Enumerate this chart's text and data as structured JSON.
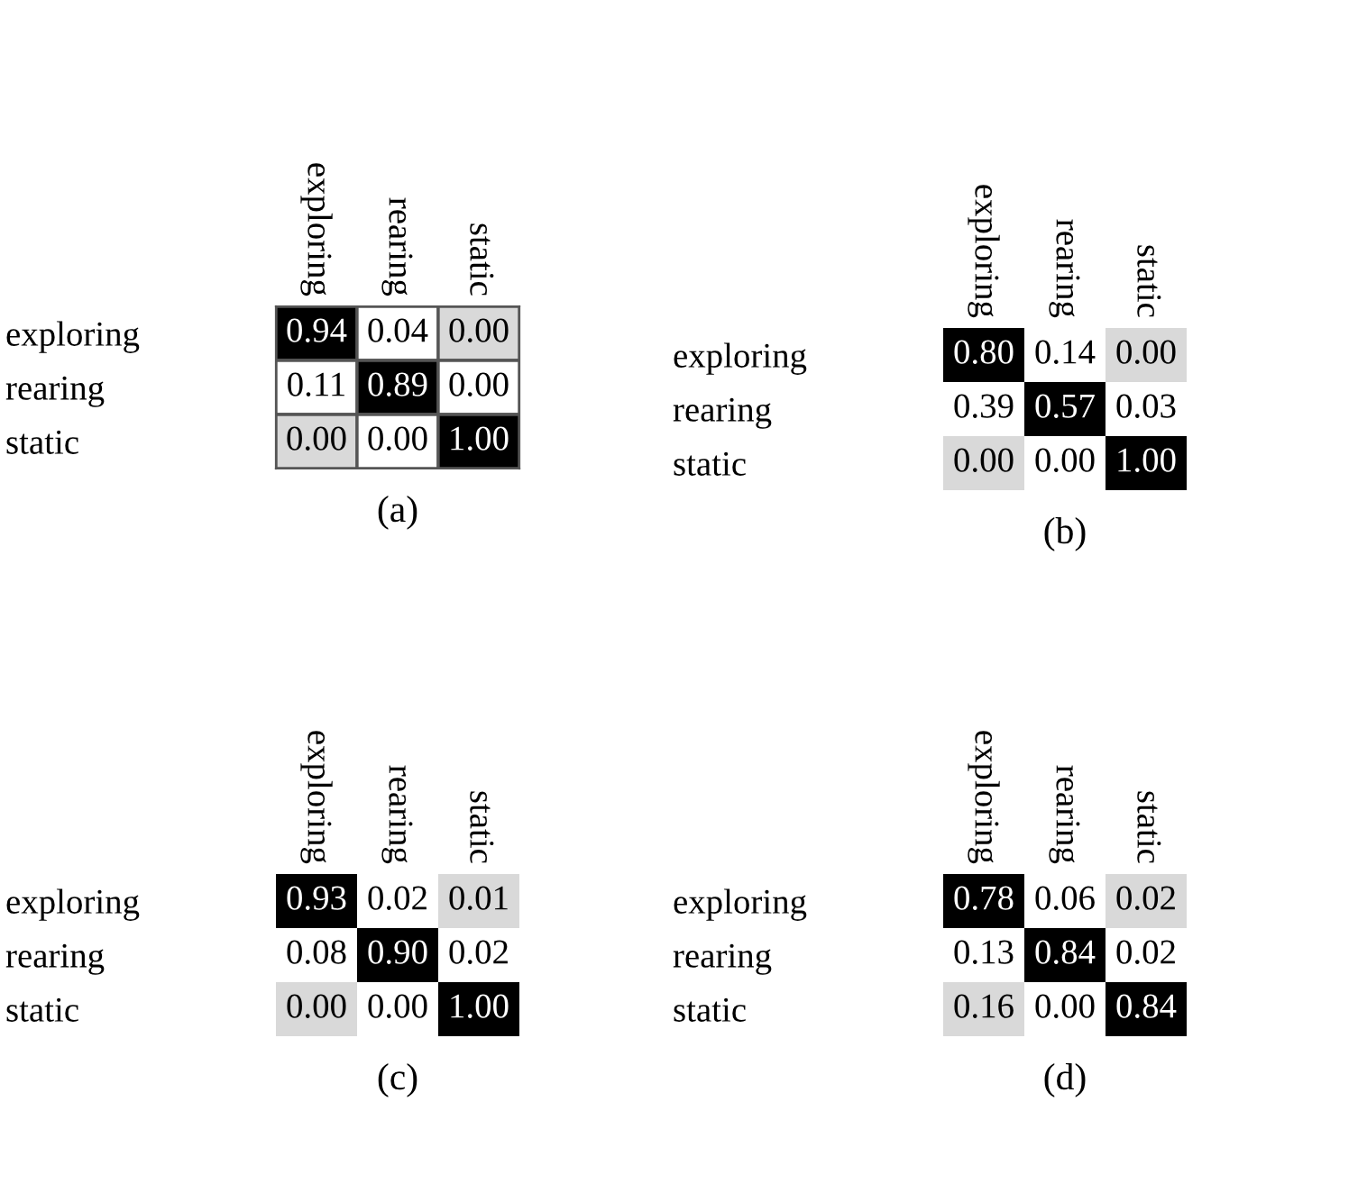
{
  "chart_data": [
    {
      "type": "heatmap",
      "title": "(a)",
      "categories": [
        "exploring",
        "rearing",
        "static"
      ],
      "y_categories": [
        "exploring",
        "rearing",
        "static"
      ],
      "line_style": "solid",
      "cells": [
        [
          0.94,
          0.04,
          0.0
        ],
        [
          0.11,
          0.89,
          0.0
        ],
        [
          0.0,
          0.0,
          1.0
        ]
      ],
      "cell_labels": [
        [
          "0.94",
          "0.04",
          "0.00"
        ],
        [
          "0.11",
          "0.89",
          "0.00"
        ],
        [
          "0.00",
          "0.00",
          "1.00"
        ]
      ],
      "colors": [
        [
          "#000000",
          "#ffffff",
          "#d9d9d9"
        ],
        [
          "#ffffff",
          "#000000",
          "#ffffff"
        ],
        [
          "#d9d9d9",
          "#ffffff",
          "#000000"
        ]
      ]
    },
    {
      "type": "heatmap",
      "title": "(b)",
      "categories": [
        "exploring",
        "rearing",
        "static"
      ],
      "y_categories": [
        "exploring",
        "rearing",
        "static"
      ],
      "cells": [
        [
          0.8,
          0.14,
          0.0
        ],
        [
          0.39,
          0.57,
          0.03
        ],
        [
          0.0,
          0.0,
          1.0
        ]
      ],
      "cell_labels": [
        [
          "0.80",
          "0.14",
          "0.00"
        ],
        [
          "0.39",
          "0.57",
          "0.03"
        ],
        [
          "0.00",
          "0.00",
          "1.00"
        ]
      ],
      "colors": [
        [
          "#000000",
          "#ffffff",
          "#d9d9d9"
        ],
        [
          "#ffffff",
          "#000000",
          "#ffffff"
        ],
        [
          "#d9d9d9",
          "#ffffff",
          "#000000"
        ]
      ]
    },
    {
      "type": "heatmap",
      "title": "(c)",
      "categories": [
        "exploring",
        "rearing",
        "static"
      ],
      "y_categories": [
        "exploring",
        "rearing",
        "static"
      ],
      "cells": [
        [
          0.93,
          0.02,
          0.01
        ],
        [
          0.08,
          0.9,
          0.02
        ],
        [
          0.0,
          0.0,
          1.0
        ]
      ],
      "cell_labels": [
        [
          "0.93",
          "0.02",
          "0.01"
        ],
        [
          "0.08",
          "0.90",
          "0.02"
        ],
        [
          "0.00",
          "0.00",
          "1.00"
        ]
      ],
      "colors": [
        [
          "#000000",
          "#ffffff",
          "#d9d9d9"
        ],
        [
          "#ffffff",
          "#000000",
          "#ffffff"
        ],
        [
          "#d9d9d9",
          "#ffffff",
          "#000000"
        ]
      ]
    },
    {
      "type": "heatmap",
      "title": "(d)",
      "categories": [
        "exploring",
        "rearing",
        "static"
      ],
      "y_categories": [
        "exploring",
        "rearing",
        "static"
      ],
      "cells": [
        [
          0.78,
          0.06,
          0.02
        ],
        [
          0.13,
          0.84,
          0.02
        ],
        [
          0.16,
          0.0,
          0.84
        ]
      ],
      "cell_labels": [
        [
          "0.78",
          "0.06",
          "0.02"
        ],
        [
          "0.13",
          "0.84",
          "0.02"
        ],
        [
          "0.16",
          "0.00",
          "0.84"
        ]
      ],
      "colors": [
        [
          "#000000",
          "#ffffff",
          "#d9d9d9"
        ],
        [
          "#ffffff",
          "#000000",
          "#ffffff"
        ],
        [
          "#d9d9d9",
          "#ffffff",
          "#000000"
        ]
      ]
    }
  ]
}
